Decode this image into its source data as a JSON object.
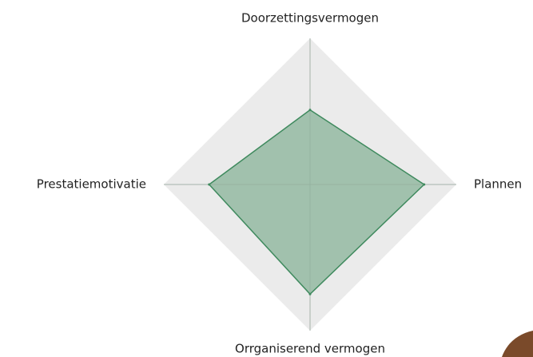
{
  "chart_data": {
    "type": "radar",
    "categories": [
      "Doorzettingsvermogen",
      "Plannen",
      "Orrganiserend vermogen",
      "Prestatiemotivatie"
    ],
    "values": [
      51,
      78,
      75,
      69
    ],
    "rlim": [
      0,
      100
    ],
    "color": "#3f8a5e",
    "fill": "#9dbfaa",
    "grid_color": "#ebebeb"
  }
}
